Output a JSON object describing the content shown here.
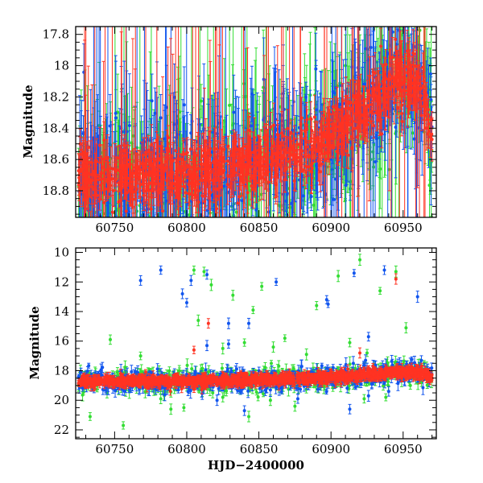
{
  "chart_data": [
    {
      "type": "scatter",
      "panel": "top",
      "title": "",
      "xlabel": "",
      "ylabel": "Magnitude",
      "xlim": [
        60723,
        60973
      ],
      "ylim": [
        17.75,
        18.97
      ],
      "y_inverted": true,
      "xticks": [
        60750,
        60800,
        60850,
        60900,
        60950
      ],
      "xtick_labels": [
        "60750",
        "60800",
        "60850",
        "60900",
        "60950"
      ],
      "yticks": [
        17.8,
        18.0,
        18.2,
        18.4,
        18.6,
        18.8
      ],
      "ytick_labels": [
        "17.8",
        "18",
        "18.2",
        "18.4",
        "18.6",
        "18.8"
      ],
      "series": [
        {
          "name": "green",
          "color": "#33dd33"
        },
        {
          "name": "blue",
          "color": "#1155ee"
        },
        {
          "name": "red",
          "color": "#ff3322"
        }
      ],
      "trend": {
        "x": [
          60725,
          60800,
          60850,
          60880,
          60920,
          60945,
          60962,
          60970
        ],
        "y": [
          18.72,
          18.7,
          18.62,
          18.55,
          18.32,
          18.08,
          18.12,
          18.45
        ]
      }
    },
    {
      "type": "scatter",
      "panel": "bottom",
      "title": "",
      "xlabel": "HJD−2400000",
      "ylabel": "Magnitude",
      "xlim": [
        60723,
        60973
      ],
      "ylim": [
        9.7,
        22.6
      ],
      "y_inverted": true,
      "xticks": [
        60750,
        60800,
        60850,
        60900,
        60950
      ],
      "xtick_labels": [
        "60750",
        "60800",
        "60850",
        "60900",
        "60950"
      ],
      "yticks": [
        10,
        12,
        14,
        16,
        18,
        20,
        22
      ],
      "ytick_labels": [
        "10",
        "12",
        "14",
        "16",
        "18",
        "20",
        "22"
      ],
      "series": [
        {
          "name": "green",
          "color": "#33dd33",
          "outliers": [
            [
              60733,
              21.1
            ],
            [
              60747,
              15.9
            ],
            [
              60756,
              21.7
            ],
            [
              60768,
              17.0
            ],
            [
              60782,
              19.9
            ],
            [
              60789,
              20.6
            ],
            [
              60798,
              20.5
            ],
            [
              60805,
              11.2
            ],
            [
              60808,
              14.6
            ],
            [
              60812,
              11.3
            ],
            [
              60817,
              12.2
            ],
            [
              60825,
              16.5
            ],
            [
              60832,
              12.9
            ],
            [
              60840,
              16.1
            ],
            [
              60852,
              12.3
            ],
            [
              60860,
              16.4
            ],
            [
              60868,
              15.8
            ],
            [
              60883,
              16.9
            ],
            [
              60890,
              13.6
            ],
            [
              60905,
              11.6
            ],
            [
              60913,
              16.1
            ],
            [
              60920,
              10.5
            ],
            [
              60925,
              16.8
            ],
            [
              60934,
              12.6
            ],
            [
              60945,
              11.3
            ],
            [
              60952,
              15.1
            ],
            [
              60825,
              19.8
            ],
            [
              60843,
              21.1
            ],
            [
              60858,
              20.0
            ],
            [
              60875,
              20.4
            ],
            [
              60893,
              19.1
            ],
            [
              60923,
              19.9
            ],
            [
              60938,
              19.8
            ],
            [
              60955,
              19.0
            ],
            [
              60818,
              19.5
            ],
            [
              60846,
              13.9
            ]
          ]
        },
        {
          "name": "blue",
          "color": "#1155ee",
          "outliers": [
            [
              60768,
              11.9
            ],
            [
              60782,
              11.2
            ],
            [
              60797,
              12.8
            ],
            [
              60803,
              11.9
            ],
            [
              60800,
              13.4
            ],
            [
              60814,
              11.5
            ],
            [
              60814,
              16.3
            ],
            [
              60829,
              14.8
            ],
            [
              60829,
              16.2
            ],
            [
              60843,
              14.8
            ],
            [
              60862,
              12.0
            ],
            [
              60897,
              13.2
            ],
            [
              60898,
              13.5
            ],
            [
              60916,
              11.4
            ],
            [
              60926,
              15.7
            ],
            [
              60937,
              11.2
            ],
            [
              60960,
              13.0
            ],
            [
              60821,
              20.0
            ],
            [
              60840,
              20.7
            ],
            [
              60877,
              19.9
            ],
            [
              60926,
              19.7
            ],
            [
              60913,
              20.6
            ],
            [
              60940,
              19.4
            ]
          ]
        },
        {
          "name": "red",
          "color": "#ff3322",
          "outliers": [
            [
              60815,
              14.8
            ],
            [
              60805,
              16.6
            ],
            [
              60945,
              11.8
            ],
            [
              60920,
              16.8
            ]
          ]
        }
      ],
      "trend": {
        "x": [
          60725,
          60800,
          60850,
          60880,
          60920,
          60945,
          60962,
          60970
        ],
        "y": [
          18.72,
          18.7,
          18.62,
          18.55,
          18.32,
          18.08,
          18.12,
          18.45
        ]
      }
    }
  ]
}
